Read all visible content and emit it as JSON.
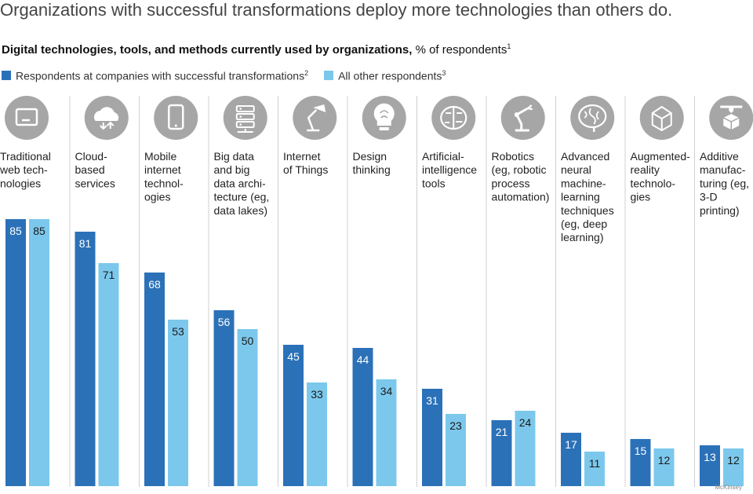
{
  "title": "Organizations with successful transformations deploy more technologies than others do.",
  "subtitle": {
    "bold": "Digital technologies, tools, and methods currently used by organizations,",
    "rest": "% of respondents",
    "note": "1"
  },
  "legend": [
    {
      "label": "Respondents at companies with successful transformations",
      "note": "2",
      "color": "#2b71b8"
    },
    {
      "label": "All other respondents",
      "note": "3",
      "color": "#7cc8ec"
    }
  ],
  "footer": "McKinsey",
  "chart_data": {
    "type": "bar",
    "title": "Digital technologies, tools, and methods currently used by organizations",
    "ylabel": "% of respondents",
    "ylim": [
      0,
      100
    ],
    "grid": false,
    "categories": [
      "Traditional web technologies",
      "Cloud-based services",
      "Mobile internet technologies",
      "Big data and big data architecture (eg, data lakes)",
      "Internet of Things",
      "Design thinking",
      "Artificial-intelligence tools",
      "Robotics (eg, robotic process automation)",
      "Advanced neural machine-learning techniques (eg, deep learning)",
      "Augmented-reality technologies",
      "Additive manufacturing (eg, 3-D printing)"
    ],
    "category_lines": [
      [
        "Traditional",
        "web tech-",
        "nologies"
      ],
      [
        "Cloud-",
        "based",
        "services"
      ],
      [
        "Mobile",
        "internet",
        "technol-",
        "ogies"
      ],
      [
        "Big data",
        "and big",
        "data archi-",
        "tecture (eg,",
        "data lakes)"
      ],
      [
        "Internet",
        "of Things"
      ],
      [
        "Design",
        "thinking"
      ],
      [
        "Artificial-",
        "intelligence",
        "tools"
      ],
      [
        "Robotics",
        "(eg, robotic",
        "process",
        "automation)"
      ],
      [
        "Advanced",
        "neural",
        "machine-",
        "learning",
        "techniques",
        "(eg, deep",
        "learning)"
      ],
      [
        "Augmented-",
        "reality",
        "technolo-",
        "gies"
      ],
      [
        "Additive",
        "manufac-",
        "turing (eg,",
        "3-D",
        "printing)"
      ]
    ],
    "icons": [
      "web-icon",
      "cloud-icon",
      "mobile-icon",
      "server-icon",
      "lamp-icon",
      "brain-bulb-icon",
      "ai-brain-icon",
      "robot-arm-icon",
      "neural-brain-icon",
      "cube-icon",
      "3d-printer-icon"
    ],
    "series": [
      {
        "name": "Respondents at companies with successful transformations",
        "values": [
          85,
          81,
          68,
          56,
          45,
          44,
          31,
          21,
          17,
          15,
          13
        ]
      },
      {
        "name": "All other respondents",
        "values": [
          85,
          71,
          53,
          50,
          33,
          34,
          23,
          24,
          11,
          12,
          12
        ]
      }
    ]
  }
}
